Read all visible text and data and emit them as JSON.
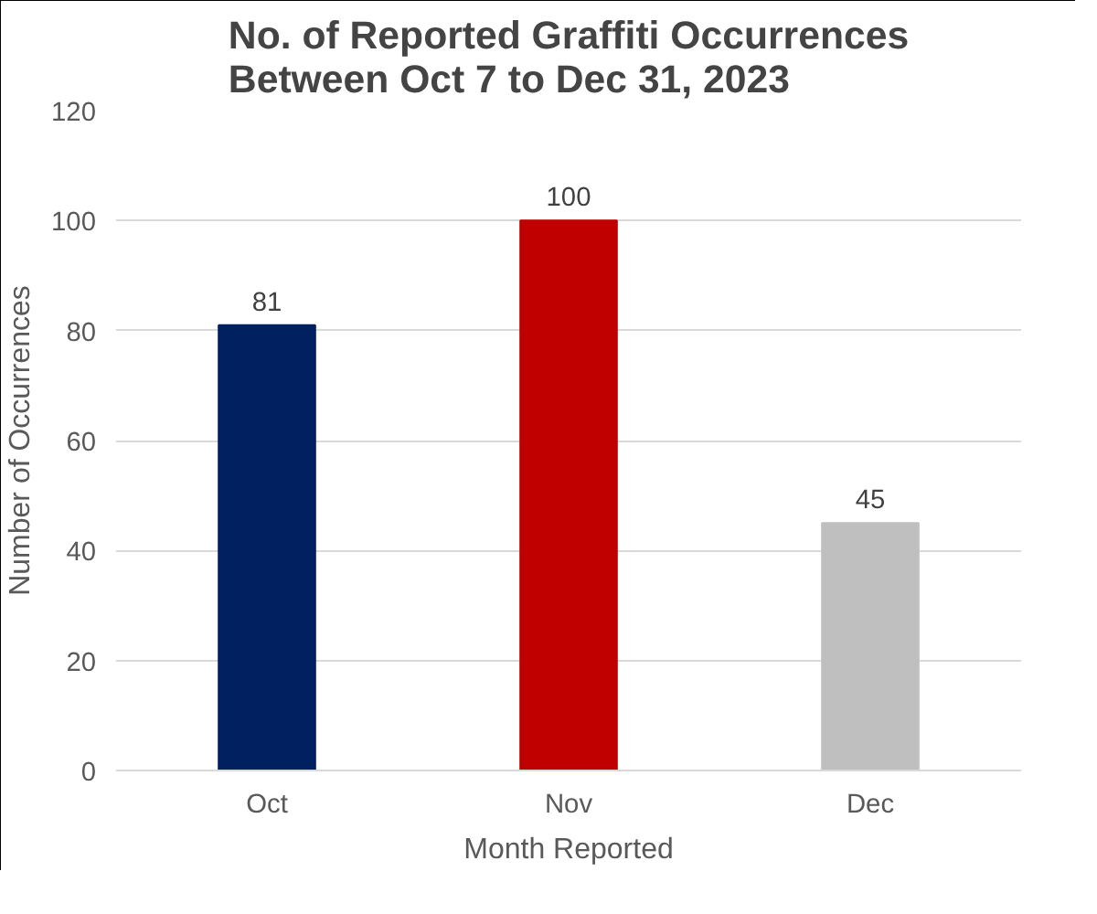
{
  "chart_data": {
    "type": "bar",
    "title": "No. of Reported Graffiti Occurrences Between Oct 7 to Dec 31, 2023",
    "categories": [
      "Oct",
      "Nov",
      "Dec"
    ],
    "values": [
      81,
      100,
      45
    ],
    "colors": [
      "#002060",
      "#c00000",
      "#bfbfbf"
    ],
    "xlabel": "Month Reported",
    "ylabel": "Number of Occurrences",
    "ylim": [
      0,
      120
    ],
    "yticks": [
      0,
      20,
      40,
      60,
      80,
      100,
      120
    ],
    "grid": "y",
    "data_labels": true
  }
}
